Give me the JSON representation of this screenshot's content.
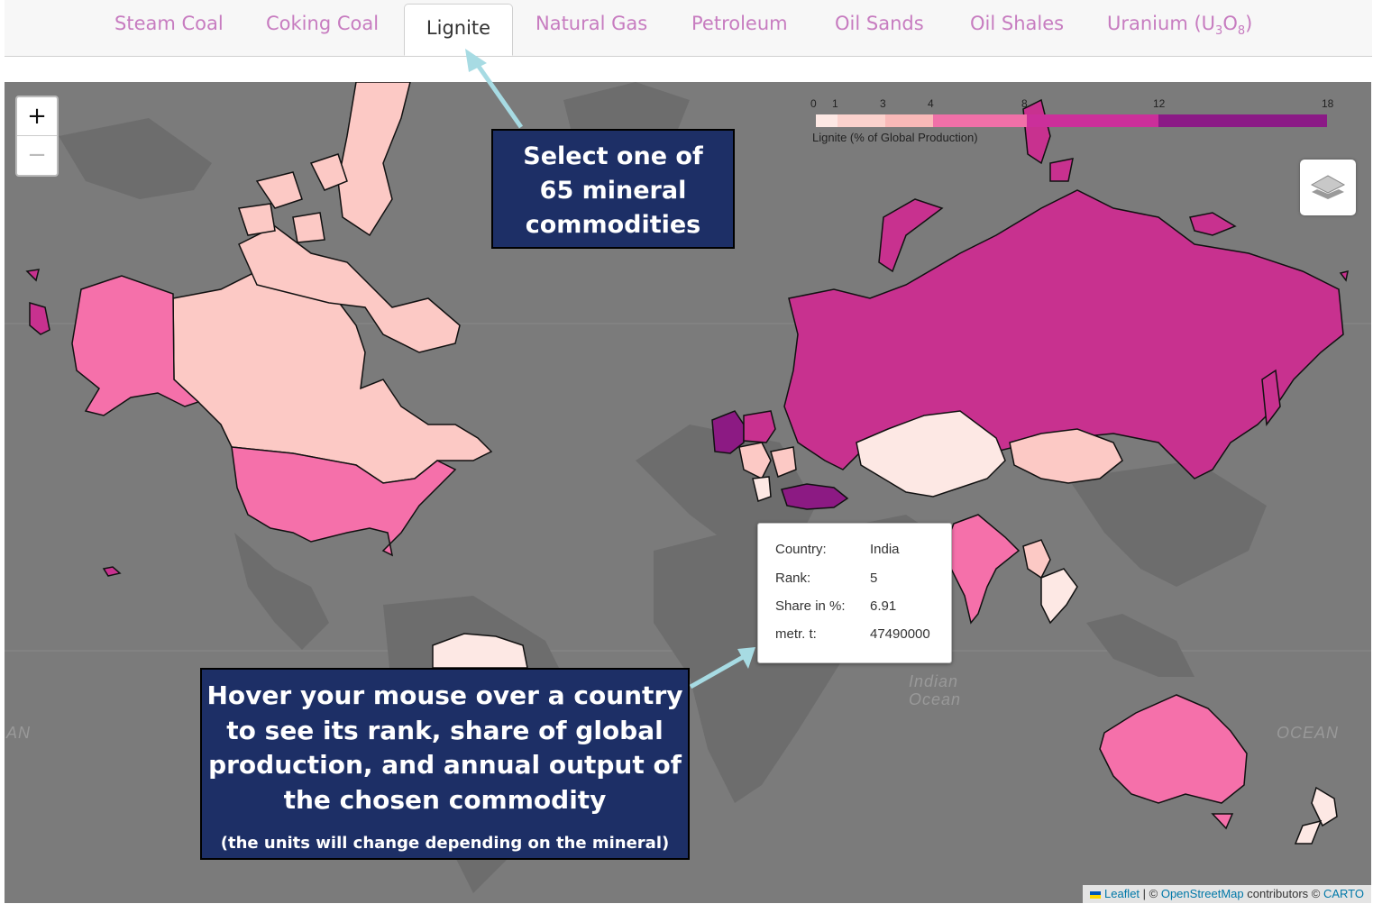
{
  "tabs": [
    {
      "label": "Steam Coal"
    },
    {
      "label": "Coking Coal"
    },
    {
      "label": "Lignite"
    },
    {
      "label": "Natural Gas"
    },
    {
      "label": "Petroleum"
    },
    {
      "label": "Oil Sands"
    },
    {
      "label": "Oil Shales"
    },
    {
      "label": "Uranium (U",
      "sub1": "3",
      "mid": "O",
      "sub2": "8",
      "end": ")"
    }
  ],
  "active_tab": "Lignite",
  "map": {
    "zoom_in": "+",
    "zoom_out": "−",
    "layers_icon": "layers-icon",
    "ocean_labels": {
      "indian": "Indian",
      "indian2": "Ocean",
      "left": "AN",
      "right": "OCEAN"
    },
    "legend": {
      "title": "Lignite (% of Global Production)",
      "ticks": [
        "0",
        "1",
        "3",
        "4",
        "8",
        "12",
        "18"
      ],
      "colors": [
        "#fde8e4",
        "#fbd2cd",
        "#f9b9b8",
        "#f070a8",
        "#cb2f9a",
        "#8b1a86"
      ]
    },
    "country_colors": {
      "lowest": "#fde8e4",
      "low": "#fcc9c5",
      "mid": "#f570aa",
      "high": "#c8318f",
      "highest": "#8c1a83"
    },
    "tooltip": {
      "country_key": "Country:",
      "country_val": "India",
      "rank_key": "Rank:",
      "rank_val": "5",
      "share_key": "Share in %:",
      "share_val": "6.91",
      "output_key": "metr. t:",
      "output_val": "47490000"
    },
    "attribution": {
      "leaflet": "Leaflet",
      "sep1": " | © ",
      "osm": "OpenStreetMap",
      "mid": " contributors © ",
      "carto": "CARTO"
    }
  },
  "callouts": {
    "select_line1": "Select one of",
    "select_line2": "65 mineral",
    "select_line3": "commodities",
    "hover_line1": "Hover your mouse over a country",
    "hover_line2": "to see its rank, share of global",
    "hover_line3": "production, and annual output of",
    "hover_line4": "the chosen commodity",
    "hover_note": "(the units will change depending on the mineral)"
  }
}
